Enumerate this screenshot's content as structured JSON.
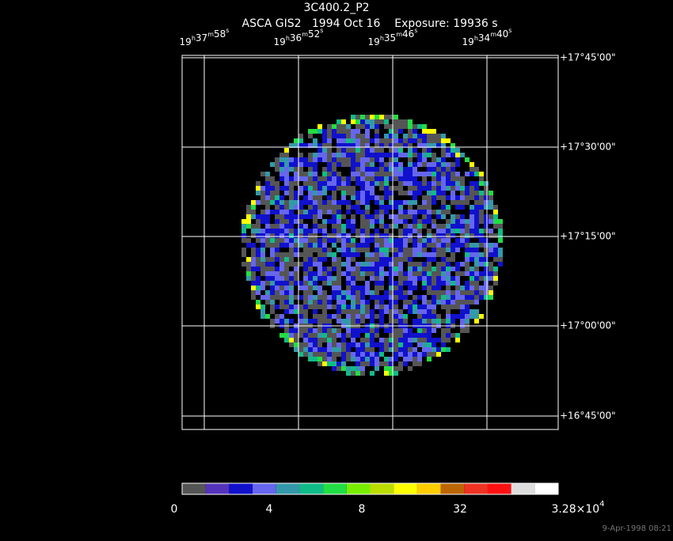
{
  "header": {
    "title": "3C400.2_P2",
    "subtitle": "ASCA GIS2   1994 Oct 16    Exposure: 19936 s"
  },
  "ra_labels": [
    "19h37m58s",
    "19h36m52s",
    "19h35m46s",
    "19h34m40s"
  ],
  "dec_labels": [
    "+17°45'00\"",
    "+17°30'00\"",
    "+17°15'00\"",
    "+17°00'00\"",
    "+16°45'00\""
  ],
  "colorbar": {
    "colors": [
      "#555555",
      "#5533bb",
      "#1111cc",
      "#6666ee",
      "#3399aa",
      "#11bb88",
      "#22dd44",
      "#77ee00",
      "#bbdd00",
      "#ffff00",
      "#ffcc00",
      "#bb6600",
      "#ee3322",
      "#ff1111",
      "#dddddd",
      "#ffffff"
    ],
    "labels": [
      "0",
      "4",
      "8",
      "32"
    ],
    "max_label": {
      "mantissa": "3.28×10",
      "exponent": "4"
    }
  },
  "timestamp": "9-Apr-1998 08:21"
}
